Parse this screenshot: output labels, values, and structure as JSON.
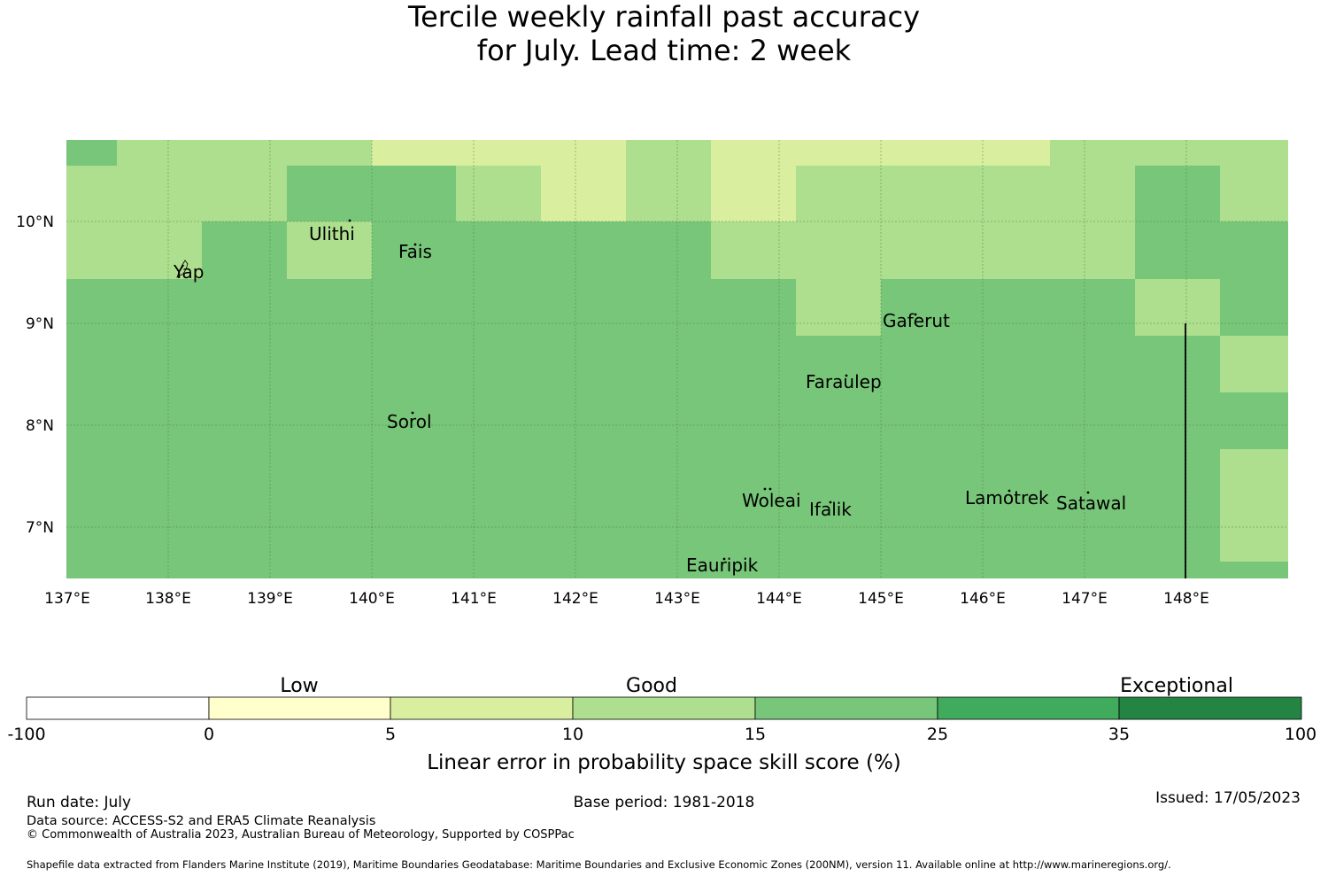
{
  "title": {
    "line1": "Tercile weekly rainfall past accuracy",
    "line2": "for July. Lead time: 2 week"
  },
  "map": {
    "lon_ticks": [
      "137°E",
      "138°E",
      "139°E",
      "140°E",
      "141°E",
      "142°E",
      "143°E",
      "144°E",
      "145°E",
      "146°E",
      "147°E",
      "148°E"
    ],
    "lat_ticks": [
      "10°N",
      "9°N",
      "8°N",
      "7°N"
    ],
    "places": [
      "Yap",
      "Ulithi",
      "Fais",
      "Gaferut",
      "Faraulep",
      "Sorol",
      "Woleai",
      "Ifalik",
      "Lamotrek",
      "Satawal",
      "Eauripik"
    ],
    "colors": {
      "band_5_10": "#d9ef9f",
      "band_10_15": "#addf8e",
      "band_15_25": "#78c679"
    }
  },
  "legend": {
    "category_labels": [
      "Low",
      "Good",
      "Exceptional"
    ],
    "boundaries": [
      "-100",
      "0",
      "5",
      "10",
      "15",
      "25",
      "35",
      "100"
    ],
    "colors": [
      "#ffffff",
      "#ffffcc",
      "#d9ef9f",
      "#addf8e",
      "#78c679",
      "#41ab5d",
      "#238443"
    ],
    "axis_label": "Linear error in probability space skill score (%)"
  },
  "footer": {
    "run_date": "Run date: July",
    "base_period": "Base period: 1981-2018",
    "issued": "Issued: 17/05/2023",
    "data_source": "Data source: ACCESS-S2 and ERA5 Climate Reanalysis",
    "copyright": "© Commonwealth of Australia 2023, Australian Bureau of Meteorology, Supported by COSPPac",
    "shapefile": "Shapefile data extracted from Flanders Marine Institute (2019), Maritime Boundaries Geodatabase: Maritime Boundaries and Exclusive Economic Zones (200NM), version 11. Available online at http://www.marineregions.org/."
  }
}
